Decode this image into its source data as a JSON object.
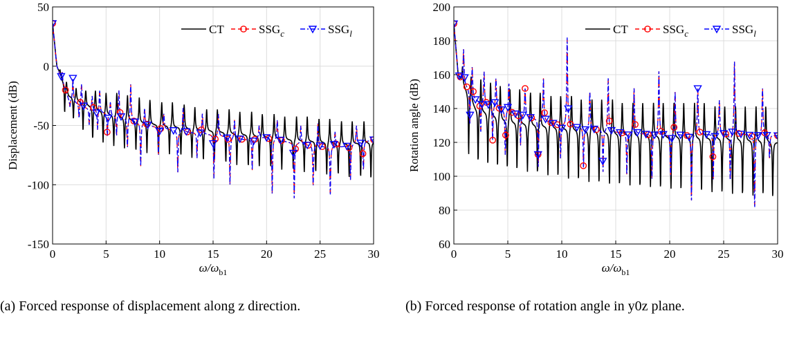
{
  "chart_data": [
    {
      "type": "line",
      "id": "a",
      "xlabel": "ω/ω",
      "xlabel_sub": "b1",
      "ylabel": "Displacement (dB)",
      "xlim": [
        0,
        30
      ],
      "ylim": [
        -150,
        50
      ],
      "xticks": [
        0,
        5,
        10,
        15,
        20,
        25,
        30
      ],
      "yticks": [
        -150,
        -100,
        -50,
        0,
        50
      ],
      "ytick_labels": [
        "-150",
        "-100",
        "-50",
        "0",
        "50"
      ],
      "grid": true,
      "legend": "top-right",
      "legend_entries": [
        {
          "label": "CT",
          "sub": ""
        },
        {
          "label": "SSG",
          "sub": "c"
        },
        {
          "label": "SSG",
          "sub": "l"
        }
      ],
      "series": [
        {
          "name": "CT",
          "color": "#000000",
          "style": "solid",
          "baseline": [
            [
              0,
              36
            ],
            [
              0.4,
              0
            ],
            [
              1.5,
              -25
            ],
            [
              3,
              -32
            ],
            [
              5,
              -40
            ],
            [
              8,
              -47
            ],
            [
              10,
              -50
            ],
            [
              12,
              -52
            ],
            [
              15,
              -55
            ],
            [
              18,
              -58
            ],
            [
              20,
              -60
            ],
            [
              22,
              -62
            ],
            [
              25,
              -64
            ],
            [
              27,
              -66
            ],
            [
              30,
              -64
            ]
          ],
          "resonances": [
            0.7,
            1.3,
            2.2,
            3.1,
            4.0,
            5.0,
            6.0,
            7.0,
            8.1,
            9.1,
            10.2,
            11.2,
            12.3,
            13.3,
            14.4,
            15.4,
            16.5,
            17.5,
            18.6,
            19.6,
            20.7,
            21.7,
            22.8,
            23.8,
            24.9,
            25.9,
            27.0,
            28.0,
            29.1
          ],
          "peak_heights": [
            -3,
            -12,
            -18,
            -20,
            -20,
            -22,
            -22,
            -24,
            -26,
            -28,
            -30,
            -30,
            -32,
            -34,
            -36,
            -36,
            -36,
            -38,
            -38,
            -40,
            -40,
            -42,
            -42,
            -42,
            -44,
            -44,
            -46,
            -46,
            -46
          ],
          "anti_depths": [
            -40,
            -45,
            -55,
            -62,
            -65,
            -68,
            -70,
            -72,
            -74,
            -75,
            -75,
            -76,
            -78,
            -80,
            -80,
            -82,
            -84,
            -85,
            -85,
            -86,
            -88,
            -88,
            -90,
            -90,
            -92,
            -92,
            -94,
            -94,
            -95
          ]
        },
        {
          "name": "SSG_c",
          "color": "#ff0000",
          "style": "dash",
          "marker": "circle",
          "baseline": [
            [
              0,
              36
            ],
            [
              0.4,
              0
            ],
            [
              1.5,
              -28
            ],
            [
              3,
              -35
            ],
            [
              5,
              -40
            ],
            [
              8,
              -48
            ],
            [
              10,
              -52
            ],
            [
              12,
              -55
            ],
            [
              15,
              -58
            ],
            [
              18,
              -62
            ],
            [
              20,
              -60
            ],
            [
              22,
              -64
            ],
            [
              25,
              -68
            ],
            [
              27,
              -68
            ],
            [
              30,
              -62
            ]
          ],
          "resonances": [
            0.9,
            1.9,
            2.7,
            3.7,
            4.4,
            5.4,
            6.2,
            7.3,
            8.6,
            10.4,
            12.2,
            14.0,
            15.5,
            17.0,
            19.3,
            21.0,
            23.2,
            24.8,
            26.4,
            28.4
          ],
          "peak_heights": [
            -5,
            -10,
            -15,
            -25,
            -20,
            -30,
            -20,
            -15,
            -35,
            -40,
            -35,
            -40,
            -40,
            -45,
            -50,
            -45,
            -50,
            -48,
            -55,
            -50
          ],
          "anti_depths": [
            -35,
            -45,
            -50,
            -55,
            -60,
            -60,
            -70,
            -85,
            -75,
            -90,
            -78,
            -95,
            -100,
            -88,
            -108,
            -112,
            -102,
            -110,
            -96,
            -88
          ],
          "markers_x": [
            0,
            1.2,
            2.6,
            3.8,
            5.1,
            6.3,
            7.6,
            8.8,
            10.1,
            12.6,
            13.9,
            15.2,
            16.4,
            17.7,
            18.9,
            20.2,
            21.4,
            22.7,
            23.9,
            25.2,
            26.5,
            27.7,
            29.0,
            30
          ]
        },
        {
          "name": "SSG_l",
          "color": "#0000ff",
          "style": "dashdot",
          "marker": "triangle-down",
          "markers_x": [
            0,
            0.8,
            1.9,
            2.9,
            4.1,
            5.2,
            6.4,
            7.7,
            8.9,
            10.0,
            11.3,
            12.5,
            13.8,
            15.0,
            16.3,
            17.5,
            18.8,
            20.0,
            21.3,
            22.5,
            23.8,
            25.0,
            26.3,
            27.5,
            28.8,
            30
          ]
        }
      ]
    },
    {
      "type": "line",
      "id": "b",
      "xlabel": "ω/ω",
      "xlabel_sub": "b1",
      "ylabel": "Rotation angle (dB)",
      "xlim": [
        0,
        30
      ],
      "ylim": [
        60,
        200
      ],
      "xticks": [
        0,
        5,
        10,
        15,
        20,
        25,
        30
      ],
      "yticks": [
        60,
        80,
        100,
        120,
        140,
        160,
        180,
        200
      ],
      "ytick_labels": [
        "60",
        "80",
        "100",
        "120",
        "140",
        "160",
        "180",
        "200"
      ],
      "grid": true,
      "legend": "top-right",
      "legend_entries": [
        {
          "label": "CT",
          "sub": ""
        },
        {
          "label": "SSG",
          "sub": "c"
        },
        {
          "label": "SSG",
          "sub": "l"
        }
      ],
      "series": [
        {
          "name": "CT",
          "color": "#000000",
          "style": "solid",
          "baseline": [
            [
              0,
              190
            ],
            [
              0.4,
              160
            ],
            [
              2,
              140
            ],
            [
              5,
              132
            ],
            [
              10,
              128
            ],
            [
              15,
              125
            ],
            [
              20,
              123
            ],
            [
              25,
              122
            ],
            [
              30,
              120
            ]
          ],
          "resonances": [
            0.8,
            1.6,
            2.5,
            3.4,
            4.3,
            5.2,
            6.1,
            7.1,
            8.0,
            9.0,
            9.9,
            10.9,
            11.8,
            12.8,
            13.7,
            14.7,
            15.6,
            16.6,
            17.5,
            18.5,
            19.4,
            20.4,
            21.3,
            22.3,
            23.2,
            24.2,
            25.1,
            26.1,
            27.0,
            28.0,
            28.9
          ],
          "peak_heights": [
            165,
            160,
            158,
            156,
            154,
            152,
            152,
            150,
            150,
            148,
            148,
            148,
            146,
            146,
            146,
            146,
            144,
            144,
            144,
            144,
            144,
            144,
            144,
            144,
            144,
            142,
            142,
            142,
            142,
            142,
            142
          ],
          "anti_depths": [
            112,
            108,
            106,
            105,
            104,
            103,
            102,
            101,
            100,
            99,
            98,
            97,
            96,
            95,
            95,
            94,
            94,
            93,
            93,
            92,
            92,
            91,
            91,
            90,
            90,
            89,
            89,
            88,
            88,
            88,
            87
          ]
        },
        {
          "name": "SSG_c",
          "color": "#ff0000",
          "style": "dash",
          "marker": "circle",
          "baseline": [
            [
              0,
              190
            ],
            [
              0.4,
              160
            ],
            [
              2,
              145
            ],
            [
              5,
              138
            ],
            [
              10,
              130
            ],
            [
              15,
              126
            ],
            [
              20,
              124
            ],
            [
              25,
              125
            ],
            [
              30,
              124
            ]
          ],
          "resonances": [
            0.9,
            1.7,
            2.8,
            3.9,
            5.1,
            6.6,
            8.3,
            10.5,
            12.6,
            14.3,
            16.7,
            19.0,
            20.5,
            22.6,
            24.6,
            26.0,
            28.6
          ],
          "peak_heights": [
            175,
            165,
            162,
            158,
            155,
            152,
            158,
            182,
            150,
            158,
            152,
            162,
            150,
            152,
            145,
            168,
            152
          ],
          "anti_depths": [
            130,
            125,
            120,
            112,
            118,
            105,
            110,
            104,
            102,
            100,
            98,
            100,
            84,
            98,
            96,
            80,
            110
          ],
          "markers_x": [
            0,
            0.6,
            1.2,
            1.8,
            2.4,
            3.0,
            3.6,
            4.2,
            4.8,
            5.4,
            6.0,
            6.6,
            7.2,
            7.8,
            8.4,
            9.0,
            9.6,
            10.8,
            12.0,
            13.2,
            14.4,
            15.6,
            16.8,
            18.0,
            19.2,
            20.4,
            21.6,
            22.8,
            24.0,
            25.2,
            26.4,
            27.6,
            28.8,
            30
          ]
        },
        {
          "name": "SSG_l",
          "color": "#0000ff",
          "style": "dashdot",
          "marker": "triangle-down",
          "markers_x": [
            0,
            0.5,
            1.0,
            1.5,
            2.0,
            2.6,
            3.2,
            3.8,
            4.4,
            5.0,
            5.7,
            6.4,
            7.1,
            7.8,
            8.5,
            9.2,
            10.0,
            10.6,
            11.4,
            12.2,
            13.0,
            13.8,
            14.6,
            15.4,
            16.2,
            17.0,
            17.8,
            18.6,
            19.4,
            20.2,
            21.0,
            21.8,
            22.6,
            23.4,
            24.2,
            25.0,
            25.8,
            26.6,
            27.4,
            28.2,
            29.0,
            30
          ]
        }
      ]
    }
  ],
  "captions": {
    "a": "(a)  Forced response of displacement along z direction.",
    "b": "(b)  Forced response of rotation angle in y0z plane."
  }
}
